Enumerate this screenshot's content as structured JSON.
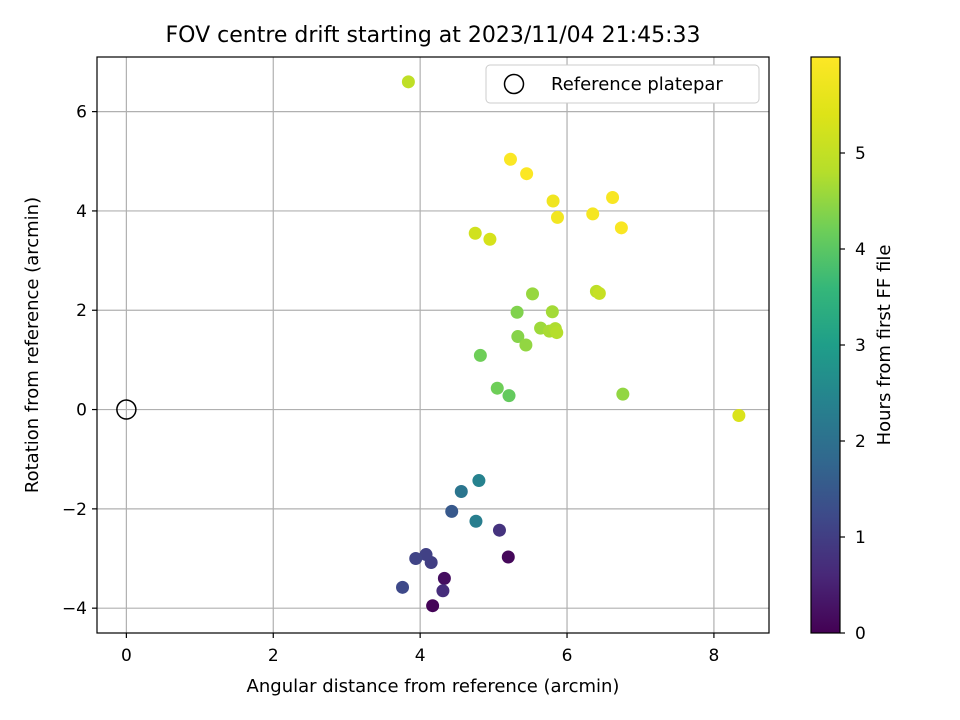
{
  "chart_data": {
    "type": "scatter",
    "title": "FOV centre drift starting at 2023/11/04 21:45:33",
    "xlabel": "Angular distance from reference (arcmin)",
    "ylabel": "Rotation from reference (arcmin)",
    "xlim": [
      -0.4,
      8.75
    ],
    "ylim": [
      -4.5,
      7.1
    ],
    "xticks": [
      0,
      2,
      4,
      6,
      8
    ],
    "xtick_labels": [
      "0",
      "2",
      "4",
      "6",
      "8"
    ],
    "yticks": [
      -4,
      -2,
      0,
      2,
      4,
      6
    ],
    "ytick_labels": [
      "−4",
      "−2",
      "0",
      "2",
      "4",
      "6"
    ],
    "grid": true,
    "legend": {
      "position": "top-right",
      "label": "Reference platepar"
    },
    "reference_point": {
      "x": 0,
      "y": 0
    },
    "colorbar": {
      "label": "Hours from first FF file",
      "range": [
        0,
        6
      ],
      "ticks": [
        0,
        1,
        2,
        3,
        4,
        5
      ],
      "tick_labels": [
        "0",
        "1",
        "2",
        "3",
        "4",
        "5"
      ],
      "colormap": "viridis"
    },
    "points": [
      {
        "x": 4.17,
        "y": -3.95,
        "hours": 0.05
      },
      {
        "x": 5.2,
        "y": -2.97,
        "hours": 0.1
      },
      {
        "x": 4.33,
        "y": -3.4,
        "hours": 0.2
      },
      {
        "x": 4.31,
        "y": -3.65,
        "hours": 0.7
      },
      {
        "x": 5.08,
        "y": -2.43,
        "hours": 0.8
      },
      {
        "x": 4.15,
        "y": -3.08,
        "hours": 1.0
      },
      {
        "x": 4.08,
        "y": -2.92,
        "hours": 1.05
      },
      {
        "x": 3.94,
        "y": -3.0,
        "hours": 1.1
      },
      {
        "x": 3.76,
        "y": -3.58,
        "hours": 1.2
      },
      {
        "x": 4.43,
        "y": -2.05,
        "hours": 1.5
      },
      {
        "x": 4.56,
        "y": -1.65,
        "hours": 2.1
      },
      {
        "x": 4.76,
        "y": -2.25,
        "hours": 2.3
      },
      {
        "x": 4.8,
        "y": -1.43,
        "hours": 2.4
      },
      {
        "x": 5.21,
        "y": 0.28,
        "hours": 4.1
      },
      {
        "x": 5.05,
        "y": 0.43,
        "hours": 4.2
      },
      {
        "x": 4.82,
        "y": 1.09,
        "hours": 4.2
      },
      {
        "x": 5.32,
        "y": 1.96,
        "hours": 4.35
      },
      {
        "x": 5.33,
        "y": 1.47,
        "hours": 4.4
      },
      {
        "x": 6.76,
        "y": 0.31,
        "hours": 4.5
      },
      {
        "x": 5.44,
        "y": 1.3,
        "hours": 4.5
      },
      {
        "x": 5.53,
        "y": 2.33,
        "hours": 4.55
      },
      {
        "x": 5.64,
        "y": 1.64,
        "hours": 4.6
      },
      {
        "x": 5.8,
        "y": 1.97,
        "hours": 4.65
      },
      {
        "x": 5.76,
        "y": 1.58,
        "hours": 4.7
      },
      {
        "x": 5.84,
        "y": 1.63,
        "hours": 4.75
      },
      {
        "x": 5.86,
        "y": 1.55,
        "hours": 4.8
      },
      {
        "x": 6.4,
        "y": 2.38,
        "hours": 4.9
      },
      {
        "x": 3.84,
        "y": 6.6,
        "hours": 4.95
      },
      {
        "x": 6.44,
        "y": 2.34,
        "hours": 5.05
      },
      {
        "x": 4.75,
        "y": 3.55,
        "hours": 5.2
      },
      {
        "x": 4.95,
        "y": 3.43,
        "hours": 5.3
      },
      {
        "x": 8.34,
        "y": -0.12,
        "hours": 5.35
      },
      {
        "x": 5.81,
        "y": 4.2,
        "hours": 5.75
      },
      {
        "x": 5.87,
        "y": 3.87,
        "hours": 5.8
      },
      {
        "x": 6.35,
        "y": 3.94,
        "hours": 5.85
      },
      {
        "x": 6.62,
        "y": 4.27,
        "hours": 5.9
      },
      {
        "x": 6.74,
        "y": 3.66,
        "hours": 5.92
      },
      {
        "x": 5.23,
        "y": 5.04,
        "hours": 5.95
      },
      {
        "x": 5.45,
        "y": 4.75,
        "hours": 5.97
      }
    ]
  }
}
